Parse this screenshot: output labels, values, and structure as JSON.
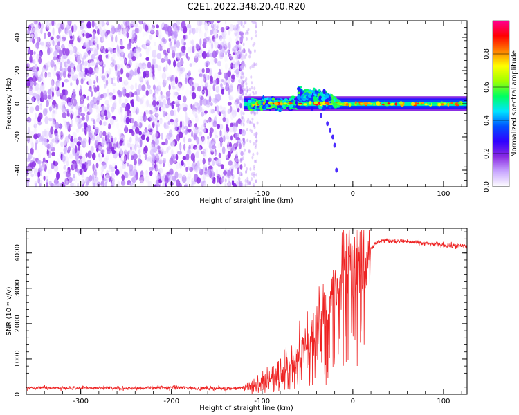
{
  "title": "C2E1.2022.348.20.40.R20",
  "chart_data": [
    {
      "type": "heatmap",
      "xlabel": "Height of straight line (km)",
      "ylabel": "Frequency (Hz)",
      "xlim": [
        -360,
        126
      ],
      "ylim": [
        -50,
        50
      ],
      "xticks": [
        -300,
        -200,
        -100,
        0,
        100
      ],
      "yticks": [
        -40,
        -20,
        0,
        20,
        40
      ],
      "grid": false,
      "colorbar": {
        "label": "Normalized spectral amplitude",
        "range": [
          0,
          1
        ],
        "ticks": [
          0.0,
          0.2,
          0.4,
          0.6,
          0.8
        ],
        "tick_labels": [
          "0.0",
          "0.2",
          "0.4",
          "0.6",
          "0.8"
        ],
        "colormap": "rainbow (white-violet-blue-cyan-green-yellow-red-magenta)"
      },
      "colormap_stops": [
        "#ffffff",
        "#c9a8ff",
        "#8a2be2",
        "#3000ff",
        "#0050ff",
        "#00e5ff",
        "#00ff60",
        "#a0ff00",
        "#ffff00",
        "#ff8000",
        "#ff0000",
        "#ff0090"
      ],
      "regions": [
        {
          "name": "noise",
          "x_range": [
            -360,
            -120
          ],
          "y_range": [
            -50,
            50
          ],
          "amplitude_range": [
            0.0,
            0.2
          ]
        },
        {
          "name": "signal-band",
          "x_range": [
            -120,
            126
          ],
          "center_freq": 0,
          "half_width": 3,
          "amplitude_range": [
            0.3,
            0.9
          ]
        },
        {
          "name": "tail",
          "x_points": [
            -45,
            -35,
            -28,
            -25,
            -22,
            -20,
            -18
          ],
          "y_points": [
            -3,
            -7,
            -12,
            -16,
            -20,
            -25,
            -40
          ]
        }
      ]
    },
    {
      "type": "line",
      "xlabel": "Height of straight line (km)",
      "ylabel": "SNR (10 * v/v)",
      "xlim": [
        -360,
        126
      ],
      "ylim": [
        0,
        4700
      ],
      "xticks": [
        -300,
        -200,
        -100,
        0,
        100
      ],
      "yticks": [
        0,
        1000,
        2000,
        3000,
        4000
      ],
      "grid": false,
      "series": [
        {
          "color": "#ee2222",
          "x": [
            -360,
            -300,
            -250,
            -200,
            -150,
            -120,
            -110,
            -100,
            -90,
            -80,
            -70,
            -60,
            -50,
            -40,
            -30,
            -20,
            -15,
            -10,
            -5,
            0,
            5,
            10,
            15,
            20,
            25,
            30,
            40,
            50,
            60,
            70,
            80,
            90,
            100,
            110,
            126
          ],
          "y": [
            180,
            180,
            170,
            190,
            160,
            180,
            250,
            380,
            500,
            650,
            850,
            1050,
            1300,
            1700,
            2400,
            2900,
            3250,
            3650,
            3750,
            3800,
            3850,
            3950,
            4050,
            4150,
            4250,
            4350,
            4350,
            4330,
            4320,
            4300,
            4260,
            4250,
            4230,
            4200,
            4200
          ]
        }
      ]
    }
  ]
}
